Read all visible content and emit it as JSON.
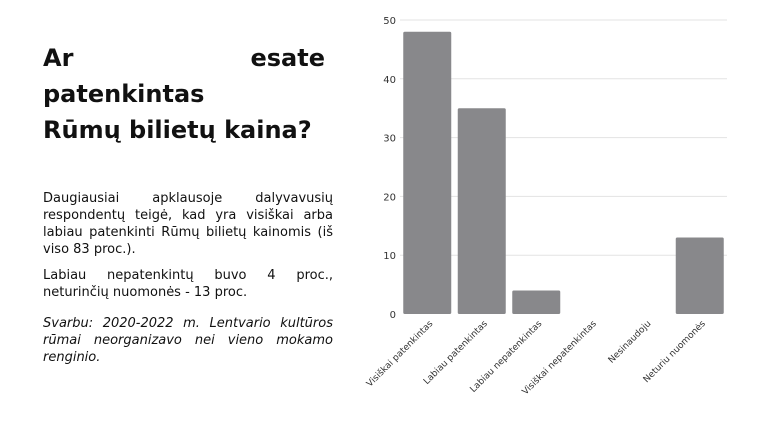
{
  "slide": {
    "title_line1": "Ar esate patenkintas",
    "title_line2": "Rūmų bilietų kaina?",
    "paragraph1": "Daugiausiai apklausoje dalyvavusių respondentų teigė, kad yra visiškai arba labiau patenkinti Rūmų bilietų kainomis (iš viso 83 proc.).",
    "paragraph2": "Labiau nepatenkintų buvo 4 proc., neturinčių nuomonės - 13 proc.",
    "paragraph3": "Svarbu: 2020-2022 m. Lentvario kultūros rūmai neorganizavo nei vieno mokamo renginio."
  },
  "chart_data": {
    "type": "bar",
    "categories": [
      "Visiškai patenkintas",
      "Labiau patenkintas",
      "Labiau nepatenkintas",
      "Visiškai nepatenkintas",
      "Nesinaudoju",
      "Neturiu nuomonės"
    ],
    "values": [
      48,
      35,
      4,
      0,
      0,
      13
    ],
    "ylim": [
      0,
      50
    ],
    "yticks": [
      0,
      10,
      20,
      30,
      40,
      50
    ],
    "grid": true,
    "bar_color": "#88888b",
    "grid_color": "#e3e3e3"
  }
}
